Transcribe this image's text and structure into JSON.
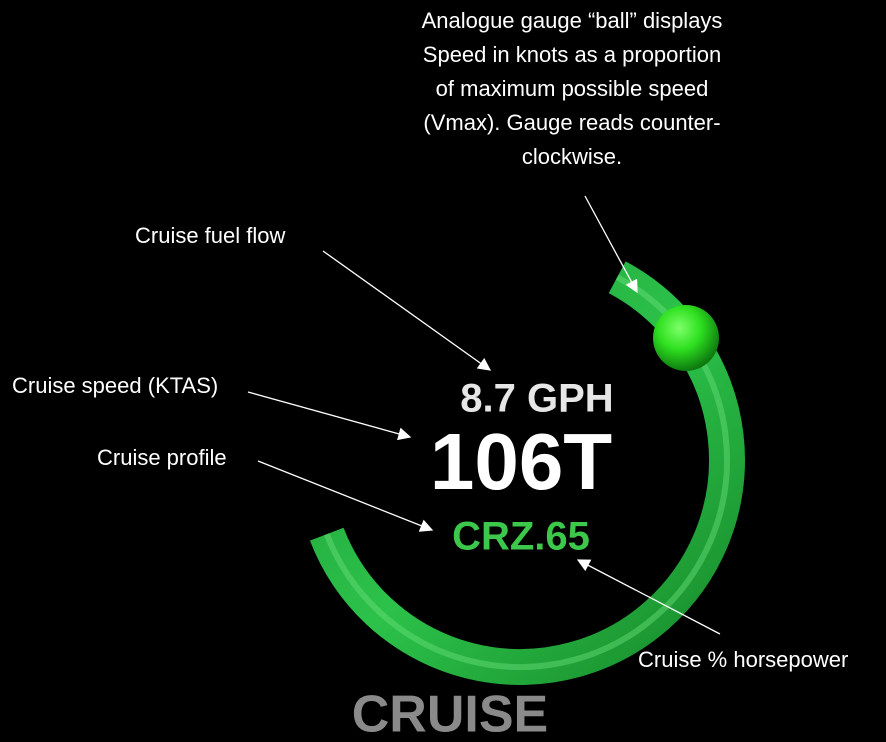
{
  "gauge": {
    "fuel_flow": "8.7 GPH",
    "speed": "106T",
    "profile": "CRZ.65",
    "mode": "CRUISE"
  },
  "annotations": [
    {
      "lines": [
        "Analogue gauge “ball” displays",
        "Speed in knots as a proportion",
        "of maximum possible speed",
        "(Vmax). Gauge reads counter-",
        "clockwise."
      ]
    },
    {
      "lines": [
        "Cruise fuel flow"
      ]
    },
    {
      "lines": [
        "Cruise speed (KTAS)"
      ]
    },
    {
      "lines": [
        "Cruise profile"
      ]
    },
    {
      "lines": [
        "Cruise % horsepower"
      ]
    }
  ]
}
